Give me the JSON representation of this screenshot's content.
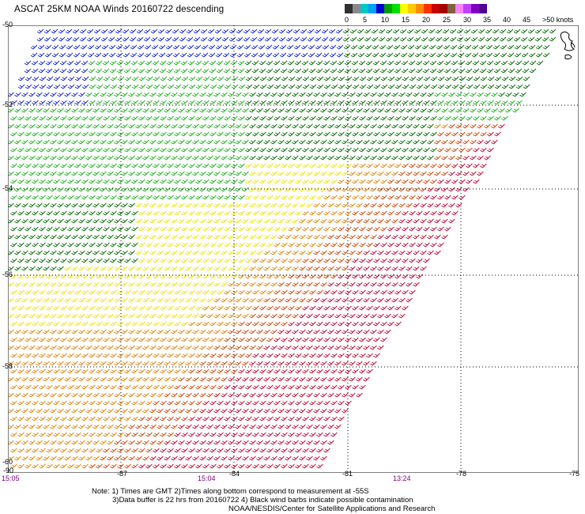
{
  "title": "ASCAT 25KM NOAA Winds 20160722 descending",
  "legend": {
    "unit": "knots",
    "labels": [
      "0",
      "5",
      "10",
      "15",
      "20",
      "25",
      "30",
      "35",
      "40",
      "45",
      ">50"
    ],
    "colors": [
      "#303030",
      "#8a8a8a",
      "#00c8c8",
      "#00a0ff",
      "#0000d0",
      "#00a000",
      "#00e000",
      "#ffff00",
      "#ffc800",
      "#ff8c00",
      "#ff3000",
      "#c80000",
      "#a00000",
      "#806040",
      "#ff80ff",
      "#c040ff",
      "#8000c0",
      "#500090"
    ]
  },
  "map": {
    "lat_labels": [
      "-50",
      "-52",
      "-54",
      "-56",
      "-58",
      "-60"
    ],
    "lon_labels": [
      "-90",
      "-87",
      "-84",
      "-81",
      "-78",
      "-75"
    ],
    "times": [
      "15:05",
      "15:04",
      "13:24"
    ],
    "wind_barb_colors": {
      "blue": "#1020d0",
      "dark_green": "#006a00",
      "green": "#16b016",
      "yellow": "#f0e000",
      "orange": "#e08000",
      "red_orange": "#d04000",
      "crimson": "#c00030"
    }
  },
  "notes": [
    "Note: 1) Times are GMT 2)Times along bottom correspond to measurement at -55S",
    "3)Data buffer is 22 hrs from 20160722 4) Black wind barbs indicate possible contamination",
    "NOAA/NESDIS/Center for Satellite Applications and Research"
  ]
}
